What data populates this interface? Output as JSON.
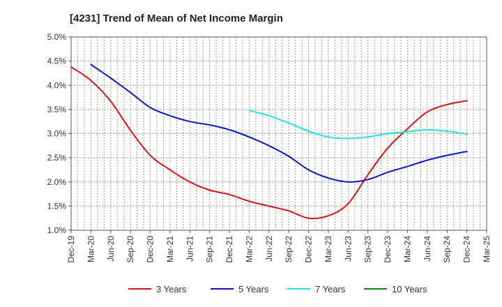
{
  "chart_data": {
    "type": "line",
    "title": "[4231]  Trend of Mean of Net Income Margin",
    "xlabel": "",
    "ylabel": "",
    "x": [
      "Dec-19",
      "Mar-20",
      "Jun-20",
      "Sep-20",
      "Dec-20",
      "Mar-21",
      "Jun-21",
      "Sep-21",
      "Dec-21",
      "Mar-22",
      "Jun-22",
      "Sep-22",
      "Dec-22",
      "Mar-23",
      "Jun-23",
      "Sep-23",
      "Dec-23",
      "Mar-24",
      "Jun-24",
      "Sep-24",
      "Dec-24",
      "Mar-25"
    ],
    "y_ticks": [
      "1.0%",
      "1.5%",
      "2.0%",
      "2.5%",
      "3.0%",
      "3.5%",
      "4.0%",
      "4.5%",
      "5.0%"
    ],
    "ylim": [
      1.0,
      5.0
    ],
    "grid": true,
    "legend_position": "bottom",
    "series": [
      {
        "name": "3 Years",
        "color": "#dd1111",
        "values": [
          4.38,
          4.1,
          3.67,
          3.07,
          2.55,
          2.25,
          2.0,
          1.83,
          1.74,
          1.6,
          1.5,
          1.4,
          1.25,
          1.3,
          1.55,
          2.15,
          2.7,
          3.1,
          3.45,
          3.6,
          3.68,
          null
        ]
      },
      {
        "name": "5 Years",
        "color": "#0a14c8",
        "values": [
          null,
          4.43,
          4.15,
          3.85,
          3.54,
          3.37,
          3.25,
          3.18,
          3.08,
          2.93,
          2.75,
          2.53,
          2.25,
          2.08,
          2.0,
          2.05,
          2.2,
          2.32,
          2.45,
          2.55,
          2.63,
          null
        ]
      },
      {
        "name": "7 Years",
        "color": "#22e3e3",
        "values": [
          null,
          null,
          null,
          null,
          null,
          null,
          null,
          null,
          null,
          3.48,
          3.37,
          3.22,
          3.05,
          2.93,
          2.9,
          2.93,
          3.0,
          3.04,
          3.08,
          3.05,
          2.99,
          null
        ]
      },
      {
        "name": "10 Years",
        "color": "#118811",
        "values": [
          null,
          null,
          null,
          null,
          null,
          null,
          null,
          null,
          null,
          null,
          null,
          null,
          null,
          null,
          null,
          null,
          null,
          null,
          null,
          null,
          null,
          null
        ]
      }
    ]
  }
}
